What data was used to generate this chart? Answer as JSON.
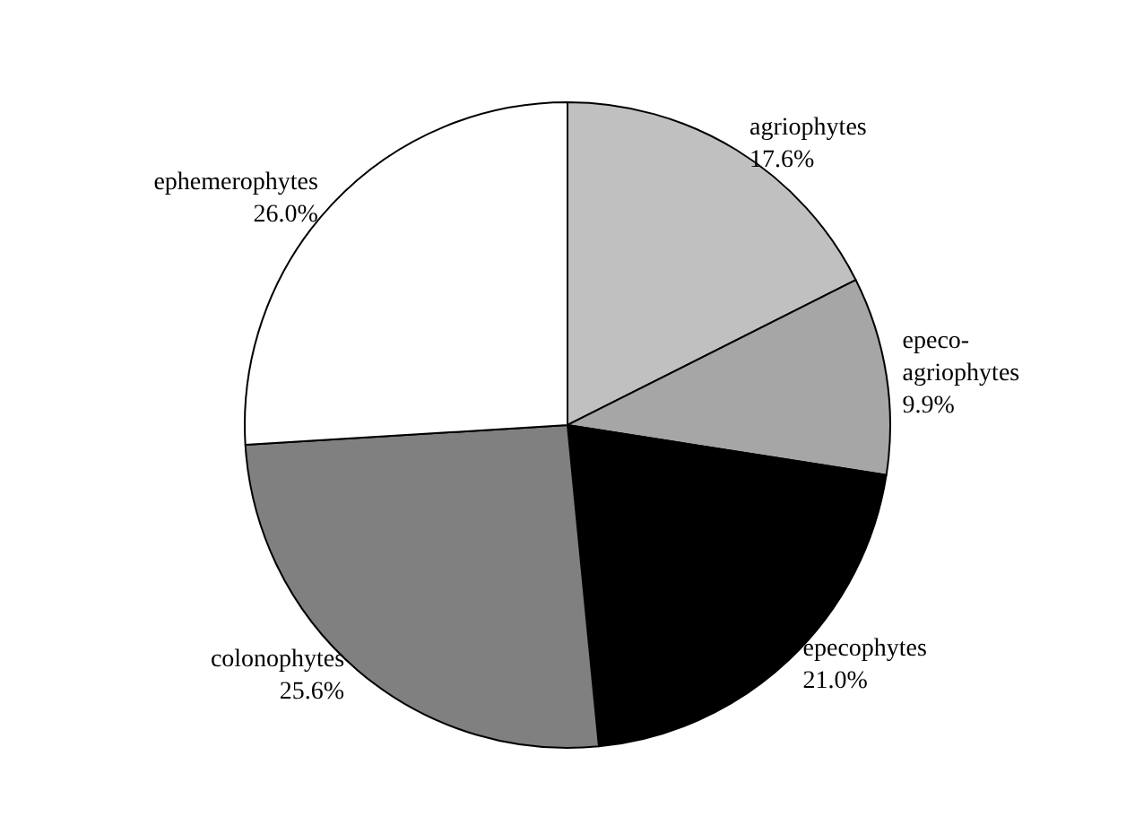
{
  "chart_data": {
    "type": "pie",
    "categories": [
      "agriophytes",
      "epeco-agriophytes",
      "epecophytes",
      "colonophytes",
      "ephemerophytes"
    ],
    "values": [
      17.6,
      9.9,
      21.0,
      25.6,
      26.0
    ],
    "value_labels": [
      "17.6%",
      "9.9%",
      "21.0%",
      "25.6%",
      "26.0%"
    ],
    "colors": [
      "#c0c0c0",
      "#a6a6a6",
      "#000000",
      "#808080",
      "#ffffff"
    ]
  }
}
